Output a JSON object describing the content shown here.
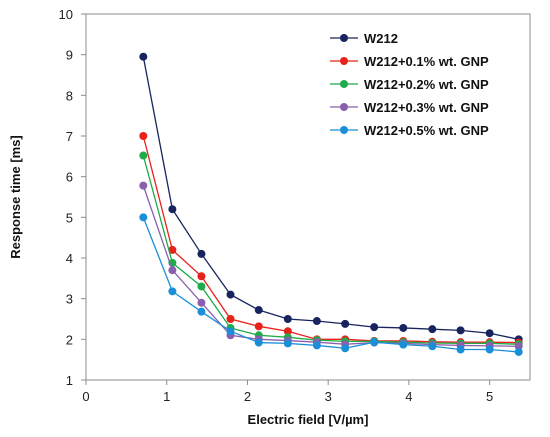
{
  "chart_data": {
    "type": "line",
    "xlabel": "Electric field [V/µm]",
    "ylabel": "Response time [ms]",
    "xlim": [
      0,
      5.5
    ],
    "ylim": [
      1,
      10
    ],
    "xticks": [
      0,
      1,
      2,
      3,
      4,
      5
    ],
    "yticks": [
      1,
      2,
      3,
      4,
      5,
      6,
      7,
      8,
      9,
      10
    ],
    "grid": false,
    "legend_position": "top-right",
    "x": [
      0.71,
      1.07,
      1.43,
      1.79,
      2.14,
      2.5,
      2.86,
      3.21,
      3.57,
      3.93,
      4.29,
      4.64,
      5.0,
      5.36
    ],
    "series": [
      {
        "name": "W212",
        "color": "#17245f",
        "values": [
          8.95,
          5.2,
          4.1,
          3.1,
          2.72,
          2.5,
          2.45,
          2.38,
          2.3,
          2.28,
          2.25,
          2.22,
          2.15,
          2.0
        ]
      },
      {
        "name": "W212+0.1% wt. GNP",
        "color": "#e8211b",
        "values": [
          7.0,
          4.2,
          3.55,
          2.5,
          2.32,
          2.2,
          2.0,
          2.0,
          1.96,
          1.96,
          1.94,
          1.93,
          1.93,
          1.92
        ]
      },
      {
        "name": "W212+0.2% wt. GNP",
        "color": "#1eab4a",
        "values": [
          6.52,
          3.88,
          3.3,
          2.28,
          2.1,
          2.05,
          1.98,
          1.95,
          1.95,
          1.93,
          1.91,
          1.9,
          1.9,
          1.88
        ]
      },
      {
        "name": "W212+0.3% wt. GNP",
        "color": "#8a5fad",
        "values": [
          5.78,
          3.7,
          2.9,
          2.1,
          2.0,
          1.97,
          1.93,
          1.88,
          1.92,
          1.9,
          1.87,
          1.85,
          1.84,
          1.83
        ]
      },
      {
        "name": "W212+0.5% wt. GNP",
        "color": "#1a8fd8",
        "values": [
          5.0,
          3.18,
          2.68,
          2.2,
          1.92,
          1.9,
          1.85,
          1.78,
          1.93,
          1.87,
          1.83,
          1.75,
          1.75,
          1.69
        ]
      }
    ]
  }
}
